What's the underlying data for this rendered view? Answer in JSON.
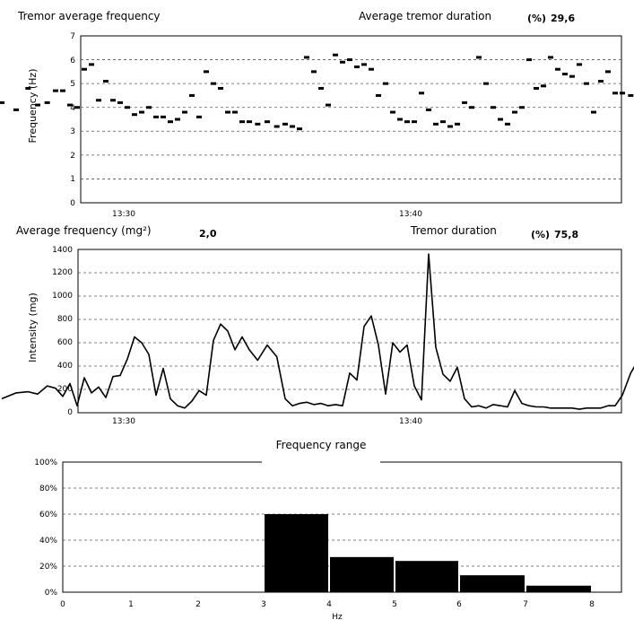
{
  "charts": {
    "freq": {
      "title_left": "Tremor average frequency",
      "title_right": "Average tremor duration",
      "title_right_unit": "(%)",
      "title_right_value": "29,6",
      "ylabel": "Frequency (Hz)",
      "ytick_labels": [
        "0",
        "1",
        "2",
        "3",
        "4",
        "5",
        "6",
        "7"
      ],
      "xtick_labels": [
        "13:30",
        "13:40"
      ]
    },
    "intensity": {
      "title_left": "Average frequency (mg²)",
      "title_left_value": "2,0",
      "title_right": "Tremor duration",
      "title_right_unit": "(%)",
      "title_right_value": "75,8",
      "ylabel": "Intensity (mg)",
      "ytick_labels": [
        "0",
        "200",
        "400",
        "600",
        "800",
        "1000",
        "1200",
        "1400"
      ],
      "xtick_labels": [
        "13:30",
        "13:40"
      ]
    },
    "hist": {
      "title": "Frequency range",
      "xlabel": "Hz",
      "ytick_labels": [
        "0%",
        "20%",
        "40%",
        "60%",
        "80%",
        "100%"
      ],
      "xtick_labels": [
        "0",
        "1",
        "2",
        "3",
        "4",
        "5",
        "6",
        "7",
        "8"
      ]
    }
  },
  "chart_data": [
    {
      "type": "scatter",
      "title": "Tremor average frequency",
      "ylabel": "Frequency (Hz)",
      "ylim": [
        0,
        7
      ],
      "x_axis": "time",
      "grid": true,
      "color": "#000000",
      "series": [
        {
          "x": [
            "13:26",
            "13:26",
            "13:27",
            "13:27",
            "13:27",
            "13:28",
            "13:28",
            "13:28",
            "13:28",
            "13:29",
            "13:29",
            "13:29",
            "13:29",
            "13:30",
            "13:30",
            "13:30",
            "13:30",
            "13:31",
            "13:31",
            "13:31",
            "13:31",
            "13:32",
            "13:32",
            "13:32",
            "13:32",
            "13:33",
            "13:33",
            "13:33",
            "13:33",
            "13:34",
            "13:34",
            "13:34",
            "13:34",
            "13:35",
            "13:35",
            "13:35",
            "13:36",
            "13:36",
            "13:36",
            "13:36",
            "13:37",
            "13:37",
            "13:37",
            "13:37",
            "13:38",
            "13:38",
            "13:38",
            "13:38",
            "13:39",
            "13:39",
            "13:39",
            "13:39",
            "13:40",
            "13:40",
            "13:40",
            "13:40",
            "13:41",
            "13:41",
            "13:41",
            "13:41",
            "13:42",
            "13:42",
            "13:42",
            "13:42",
            "13:43",
            "13:43",
            "13:43",
            "13:43",
            "13:44",
            "13:44",
            "13:44",
            "13:44",
            "13:45",
            "13:45",
            "13:45",
            "13:45",
            "13:46",
            "13:46",
            "13:46",
            "13:46",
            "13:47",
            "13:47",
            "13:47",
            "13:47",
            "13:48",
            "13:48",
            "13:48",
            "13:49",
            "13:49",
            "13:49"
          ],
          "y": [
            4.2,
            3.9,
            4.8,
            4.1,
            4.2,
            4.7,
            4.7,
            4.1,
            4.0,
            5.6,
            5.8,
            4.3,
            5.1,
            4.3,
            4.2,
            4.0,
            3.7,
            3.8,
            4.0,
            3.6,
            3.6,
            3.4,
            3.5,
            3.8,
            4.5,
            3.6,
            5.5,
            5.0,
            4.8,
            3.8,
            3.8,
            3.4,
            3.4,
            3.3,
            3.4,
            3.2,
            3.3,
            3.2,
            3.1,
            6.1,
            5.5,
            4.8,
            4.1,
            6.2,
            5.9,
            6.0,
            5.7,
            5.8,
            5.6,
            4.5,
            5.0,
            3.8,
            3.5,
            3.4,
            3.4,
            4.6,
            3.9,
            3.3,
            3.4,
            3.2,
            3.3,
            4.2,
            4.0,
            6.1,
            5.0,
            4.0,
            3.5,
            3.3,
            3.8,
            4.0,
            6.0,
            4.8,
            4.9,
            6.1,
            5.6,
            5.4,
            5.3,
            5.8,
            5.0,
            3.8,
            5.1,
            5.5,
            4.6,
            4.6,
            4.5,
            6.1,
            5.0,
            4.5,
            5.9,
            4.2
          ]
        }
      ]
    },
    {
      "type": "line",
      "title": "Average frequency (mg²)",
      "ylabel": "Intensity (mg)",
      "ylim": [
        0,
        1400
      ],
      "x_axis": "time",
      "grid": true,
      "color": "#000000",
      "series": [
        {
          "x": [
            "13:26",
            "13:26",
            "13:27",
            "13:27",
            "13:27",
            "13:28",
            "13:28",
            "13:28",
            "13:28",
            "13:29",
            "13:29",
            "13:29",
            "13:29",
            "13:30",
            "13:30",
            "13:30",
            "13:30",
            "13:31",
            "13:31",
            "13:31",
            "13:31",
            "13:32",
            "13:32",
            "13:32",
            "13:32",
            "13:33",
            "13:33",
            "13:33",
            "13:33",
            "13:34",
            "13:34",
            "13:34",
            "13:34",
            "13:35",
            "13:35",
            "13:35",
            "13:36",
            "13:36",
            "13:36",
            "13:36",
            "13:37",
            "13:37",
            "13:37",
            "13:37",
            "13:38",
            "13:38",
            "13:38",
            "13:38",
            "13:39",
            "13:39",
            "13:39",
            "13:39",
            "13:40",
            "13:40",
            "13:40",
            "13:40",
            "13:41",
            "13:41",
            "13:41",
            "13:41",
            "13:42",
            "13:42",
            "13:42",
            "13:42",
            "13:43",
            "13:43",
            "13:43",
            "13:43",
            "13:44",
            "13:44",
            "13:44",
            "13:44",
            "13:45",
            "13:45",
            "13:45",
            "13:45",
            "13:46",
            "13:46",
            "13:46",
            "13:46",
            "13:47",
            "13:47",
            "13:47",
            "13:47",
            "13:48",
            "13:48",
            "13:48",
            "13:49",
            "13:49",
            "13:49"
          ],
          "y": [
            120,
            170,
            180,
            160,
            230,
            210,
            140,
            250,
            60,
            300,
            170,
            220,
            130,
            310,
            320,
            460,
            650,
            600,
            500,
            150,
            380,
            120,
            60,
            40,
            100,
            190,
            150,
            620,
            760,
            700,
            540,
            650,
            540,
            450,
            580,
            480,
            120,
            60,
            80,
            90,
            70,
            80,
            60,
            70,
            60,
            340,
            280,
            740,
            830,
            580,
            160,
            600,
            520,
            580,
            230,
            110,
            1360,
            560,
            330,
            270,
            390,
            120,
            50,
            60,
            40,
            70,
            60,
            50,
            190,
            80,
            60,
            50,
            50,
            40,
            40,
            40,
            40,
            30,
            40,
            40,
            40,
            60,
            60,
            150,
            340,
            480,
            180,
            280,
            690,
            250
          ]
        }
      ]
    },
    {
      "type": "bar",
      "title": "Frequency range",
      "xlabel": "Hz",
      "ylim": [
        0,
        100
      ],
      "y_unit": "%",
      "grid": true,
      "color": "#000000",
      "bins": [
        [
          3,
          4
        ],
        [
          4,
          5
        ],
        [
          5,
          6
        ],
        [
          6,
          7
        ],
        [
          7,
          8
        ]
      ],
      "values": [
        60,
        27,
        24,
        13,
        5
      ]
    }
  ]
}
